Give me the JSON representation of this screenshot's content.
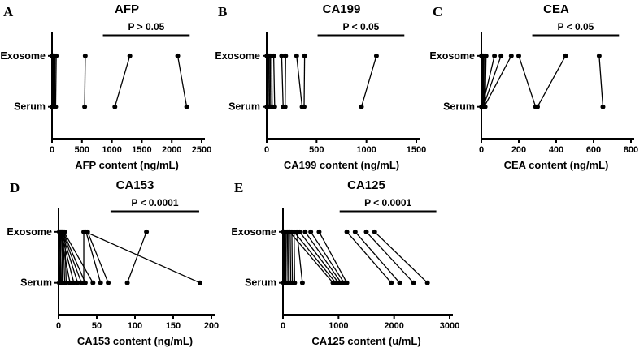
{
  "figure": {
    "background": "#ffffff",
    "ink": "#000000",
    "description": "Paired dot plots comparing tumor marker content in Exosome vs Serum, panels A-E"
  },
  "chart_data": [
    {
      "type": "line",
      "subtype": "paired-dot-plot",
      "panel_label": "A",
      "title": "AFP",
      "p_value": "P > 0.05",
      "xlabel": "AFP content (ng/mL)",
      "categories": [
        "Exosome",
        "Serum"
      ],
      "xlim": [
        0,
        2500
      ],
      "xticks": [
        0,
        500,
        1000,
        1500,
        2000,
        2500
      ],
      "pairs": [
        [
          2,
          2
        ],
        [
          4,
          3
        ],
        [
          6,
          5
        ],
        [
          8,
          8
        ],
        [
          10,
          12
        ],
        [
          14,
          10
        ],
        [
          18,
          20
        ],
        [
          25,
          22
        ],
        [
          35,
          30
        ],
        [
          50,
          45
        ],
        [
          70,
          60
        ],
        [
          555,
          545
        ],
        [
          1300,
          1050
        ],
        [
          2100,
          2250
        ]
      ]
    },
    {
      "type": "line",
      "subtype": "paired-dot-plot",
      "panel_label": "B",
      "title": "CA199",
      "p_value": "P < 0.05",
      "xlabel": "CA199 content (ng/mL)",
      "categories": [
        "Exosome",
        "Serum"
      ],
      "xlim": [
        0,
        1500
      ],
      "xticks": [
        0,
        500,
        1000,
        1500
      ],
      "pairs": [
        [
          2,
          2
        ],
        [
          4,
          5
        ],
        [
          6,
          4
        ],
        [
          8,
          10
        ],
        [
          12,
          15
        ],
        [
          18,
          14
        ],
        [
          25,
          28
        ],
        [
          35,
          40
        ],
        [
          50,
          55
        ],
        [
          70,
          80
        ],
        [
          150,
          165
        ],
        [
          190,
          185
        ],
        [
          300,
          355
        ],
        [
          380,
          375
        ],
        [
          1100,
          950
        ]
      ]
    },
    {
      "type": "line",
      "subtype": "paired-dot-plot",
      "panel_label": "C",
      "title": "CEA",
      "p_value": "P < 0.05",
      "xlabel": "CEA content (ng/mL)",
      "categories": [
        "Exosome",
        "Serum"
      ],
      "xlim": [
        0,
        800
      ],
      "xticks": [
        0,
        200,
        400,
        600,
        800
      ],
      "pairs": [
        [
          1,
          1
        ],
        [
          2,
          3
        ],
        [
          3,
          2
        ],
        [
          5,
          6
        ],
        [
          8,
          7
        ],
        [
          12,
          10
        ],
        [
          18,
          15
        ],
        [
          25,
          20
        ],
        [
          70,
          5
        ],
        [
          105,
          10
        ],
        [
          160,
          15
        ],
        [
          200,
          290
        ],
        [
          450,
          300
        ],
        [
          630,
          650
        ]
      ]
    },
    {
      "type": "line",
      "subtype": "paired-dot-plot",
      "panel_label": "D",
      "title": "CA153",
      "p_value": "P < 0.0001",
      "xlabel": "CA153 content (ng/mL)",
      "categories": [
        "Exosome",
        "Serum"
      ],
      "xlim": [
        0,
        200
      ],
      "xticks": [
        0,
        50,
        100,
        150,
        200
      ],
      "pairs": [
        [
          1,
          1
        ],
        [
          2,
          3
        ],
        [
          3,
          2
        ],
        [
          4,
          5
        ],
        [
          5,
          4
        ],
        [
          6,
          8
        ],
        [
          8,
          10
        ],
        [
          2,
          15
        ],
        [
          3,
          20
        ],
        [
          4,
          25
        ],
        [
          5,
          30
        ],
        [
          6,
          35
        ],
        [
          7,
          45
        ],
        [
          33,
          33
        ],
        [
          36,
          55
        ],
        [
          38,
          65
        ],
        [
          115,
          90
        ],
        [
          35,
          185
        ]
      ]
    },
    {
      "type": "line",
      "subtype": "paired-dot-plot",
      "panel_label": "E",
      "title": "CA125",
      "p_value": "P < 0.0001",
      "xlabel": "CA125 content (u/mL)",
      "categories": [
        "Exosome",
        "Serum"
      ],
      "xlim": [
        0,
        3000
      ],
      "xticks": [
        0,
        1000,
        2000,
        3000
      ],
      "pairs": [
        [
          10,
          10
        ],
        [
          20,
          25
        ],
        [
          30,
          20
        ],
        [
          40,
          45
        ],
        [
          60,
          55
        ],
        [
          80,
          90
        ],
        [
          100,
          110
        ],
        [
          130,
          140
        ],
        [
          160,
          170
        ],
        [
          200,
          210
        ],
        [
          250,
          350
        ],
        [
          120,
          900
        ],
        [
          200,
          950
        ],
        [
          300,
          1000
        ],
        [
          400,
          1050
        ],
        [
          500,
          1100
        ],
        [
          650,
          1150
        ],
        [
          1150,
          1950
        ],
        [
          1300,
          2100
        ],
        [
          1500,
          2350
        ],
        [
          1650,
          2600
        ]
      ]
    }
  ]
}
